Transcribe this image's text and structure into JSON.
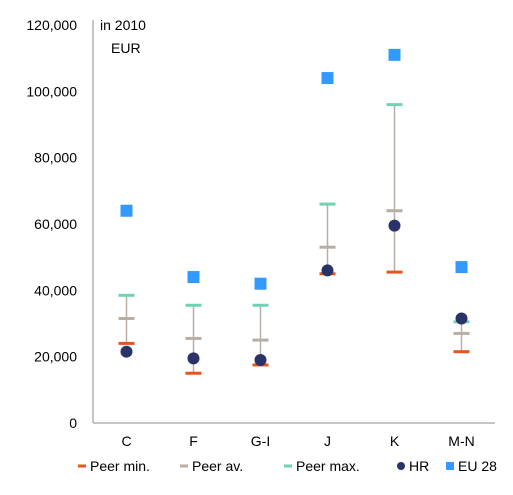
{
  "chart_data": {
    "type": "scatter",
    "unit_label_line1": "in 2010",
    "unit_label_line2": "EUR",
    "categories": [
      "C",
      "F",
      "G-I",
      "J",
      "K",
      "M-N"
    ],
    "ylim": [
      0,
      120000
    ],
    "yticks": [
      0,
      20000,
      40000,
      60000,
      80000,
      100000,
      120000
    ],
    "ytick_labels": [
      "0",
      "20,000",
      "40,000",
      "60,000",
      "80,000",
      "100,000",
      "120,000"
    ],
    "grid": false,
    "legend_position": "bottom",
    "series": [
      {
        "name": "Peer min.",
        "marker": "dash",
        "color": "#e8541c",
        "values": [
          24000,
          15000,
          17500,
          45000,
          45500,
          21500
        ]
      },
      {
        "name": "Peer av.",
        "marker": "dash",
        "color": "#b9aea5",
        "values": [
          31500,
          25500,
          25000,
          53000,
          64000,
          27000
        ]
      },
      {
        "name": "Peer max.",
        "marker": "dash",
        "color": "#6fd3b1",
        "values": [
          38500,
          35500,
          35500,
          66000,
          96000,
          30500
        ]
      },
      {
        "name": "HR",
        "marker": "circle",
        "color": "#2a3268",
        "values": [
          21500,
          19500,
          19000,
          46000,
          59500,
          31500
        ]
      },
      {
        "name": "EU 28",
        "marker": "square",
        "color": "#3399ff",
        "values": [
          64000,
          44000,
          42000,
          104000,
          111000,
          47000
        ]
      }
    ]
  }
}
